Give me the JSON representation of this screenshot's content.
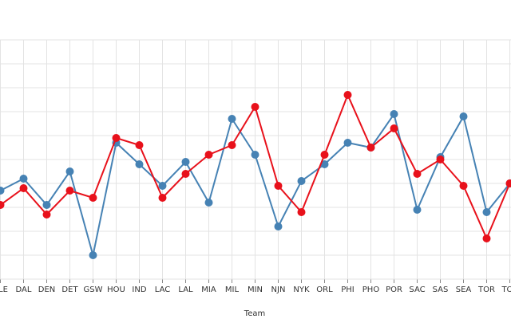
{
  "chart_data": {
    "type": "line",
    "x_label": "Team",
    "categories": [
      "CLE",
      "DAL",
      "DEN",
      "DET",
      "GSW",
      "HOU",
      "IND",
      "LAC",
      "LAL",
      "MIA",
      "MIL",
      "MIN",
      "NJN",
      "NYK",
      "ORL",
      "PHI",
      "PHO",
      "POR",
      "SAC",
      "SAS",
      "SEA",
      "TOR",
      "TOT"
    ],
    "series": [
      {
        "color": "#4682b4",
        "values": [
          3.7,
          4.2,
          3.1,
          4.5,
          1.0,
          5.7,
          4.8,
          3.9,
          4.9,
          3.2,
          6.7,
          5.2,
          2.2,
          4.1,
          4.8,
          5.7,
          5.5,
          6.9,
          2.9,
          5.1,
          6.8,
          2.8,
          4.0
        ]
      },
      {
        "color": "#e8111b",
        "values": [
          3.1,
          3.8,
          2.7,
          3.7,
          3.4,
          5.9,
          5.6,
          3.4,
          4.4,
          5.2,
          5.6,
          7.2,
          3.9,
          2.8,
          5.2,
          7.7,
          5.5,
          6.3,
          4.4,
          5.0,
          3.9,
          1.7,
          4.0
        ]
      }
    ],
    "ylim": [
      0,
      10
    ],
    "yticks": [
      0,
      1,
      2,
      3,
      4,
      5,
      6,
      7,
      8,
      9,
      10
    ],
    "grid": true
  }
}
